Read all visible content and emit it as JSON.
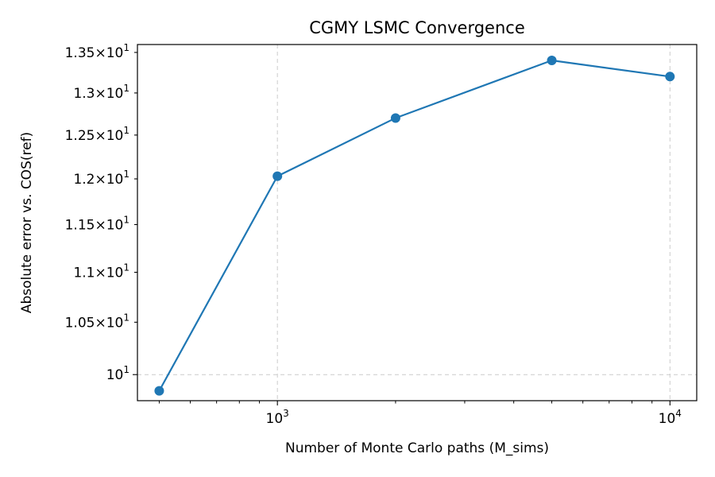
{
  "chart_data": {
    "type": "line",
    "title": "CGMY LSMC Convergence",
    "xlabel": "Number of Monte Carlo paths (M_sims)",
    "ylabel": "Absolute error vs. COS(ref)",
    "x_scale": "log",
    "y_scale": "log",
    "xlim": [
      440,
      11700
    ],
    "ylim": [
      9.76,
      13.6
    ],
    "grid": true,
    "line_color": "#1f77b4",
    "x_ticks": [
      {
        "value": 1000,
        "base": "10",
        "exp": "3"
      },
      {
        "value": 10000,
        "base": "10",
        "exp": "4"
      }
    ],
    "y_ticks": [
      {
        "value": 10.0,
        "mantissa": "",
        "base": "10",
        "exp": "1"
      },
      {
        "value": 10.5,
        "mantissa": "1.05",
        "base": "10",
        "exp": "1"
      },
      {
        "value": 11.0,
        "mantissa": "1.1",
        "base": "10",
        "exp": "1"
      },
      {
        "value": 11.5,
        "mantissa": "1.15",
        "base": "10",
        "exp": "1"
      },
      {
        "value": 12.0,
        "mantissa": "1.2",
        "base": "10",
        "exp": "1"
      },
      {
        "value": 12.5,
        "mantissa": "1.25",
        "base": "10",
        "exp": "1"
      },
      {
        "value": 13.0,
        "mantissa": "1.3",
        "base": "10",
        "exp": "1"
      },
      {
        "value": 13.5,
        "mantissa": "1.35",
        "base": "10",
        "exp": "1"
      }
    ],
    "x": [
      500,
      1000,
      2000,
      5000,
      10000
    ],
    "series": [
      {
        "values": [
          9.85,
          12.03,
          12.7,
          13.4,
          13.2
        ]
      }
    ]
  }
}
